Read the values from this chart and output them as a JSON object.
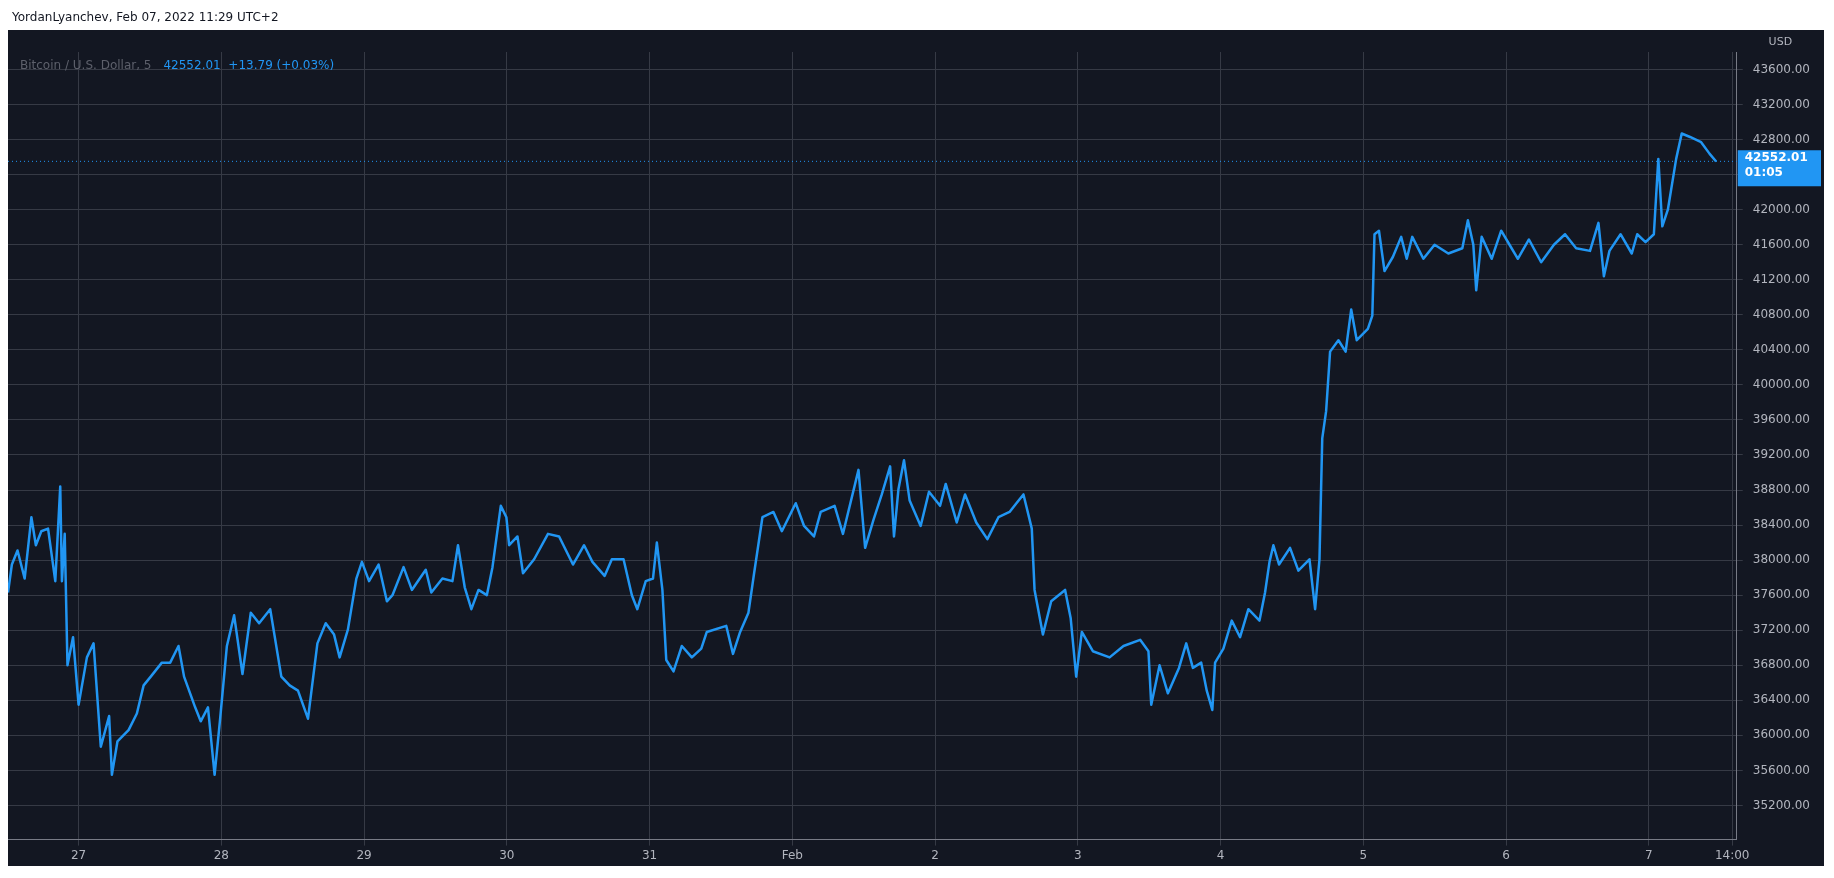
{
  "chart_data": {
    "type": "line",
    "title": "YordanLyanchev, Feb 07, 2022 11:29 UTC+2",
    "subtitle": "Bitcoin / U.S. Dollar, 5",
    "annotations": [
      "42552.01  +13.79 (+0.03%)"
    ],
    "ylabel": "USD",
    "color": "#2196f3",
    "marker": "none",
    "line_style": "solid",
    "grid": true,
    "x": [
      "2022-01-26T12:08",
      "2022-01-26T12:47",
      "2022-01-26T13:44",
      "2022-01-26T14:56",
      "2022-01-26T16:04",
      "2022-01-26T16:49",
      "2022-01-26T17:44",
      "2022-01-26T18:52",
      "2022-01-26T20:05",
      "2022-01-26T20:55",
      "2022-01-26T21:12",
      "2022-01-26T21:40",
      "2022-01-26T22:08",
      "2022-01-26T23:04",
      "2022-01-27T00:00",
      "2022-01-27T01:24",
      "2022-01-27T02:31",
      "2022-01-27T03:44",
      "2022-01-27T05:08",
      "2022-01-27T05:36",
      "2022-01-27T06:32",
      "2022-01-27T08:24",
      "2022-01-27T09:48",
      "2022-01-27T10:56",
      "2022-01-27T12:08",
      "2022-01-27T14:00",
      "2022-01-27T15:24",
      "2022-01-27T16:48",
      "2022-01-27T17:44",
      "2022-01-27T19:36",
      "2022-01-27T20:32",
      "2022-01-27T21:45",
      "2022-01-27T22:52",
      "2022-01-27T23:48",
      "2022-01-28T00:56",
      "2022-01-28T02:09",
      "2022-01-28T03:33",
      "2022-01-28T04:57",
      "2022-01-28T06:21",
      "2022-01-28T08:13",
      "2022-01-28T10:05",
      "2022-01-28T11:29",
      "2022-01-28T12:53",
      "2022-01-28T14:34",
      "2022-01-28T16:09",
      "2022-01-28T17:33",
      "2022-01-28T18:57",
      "2022-01-28T19:53",
      "2022-01-28T21:17",
      "2022-01-28T22:42",
      "2022-01-28T23:38",
      "2022-01-29T00:50",
      "2022-01-29T02:26",
      "2022-01-29T03:50",
      "2022-01-29T04:46",
      "2022-01-29T06:38",
      "2022-01-29T08:02",
      "2022-01-29T10:22",
      "2022-01-29T11:18",
      "2022-01-29T13:10",
      "2022-01-29T14:51",
      "2022-01-29T15:47",
      "2022-01-29T16:55",
      "2022-01-29T18:02",
      "2022-01-29T19:14",
      "2022-01-29T20:38",
      "2022-01-29T21:35",
      "2022-01-29T22:59",
      "2022-01-29T23:55",
      "2022-01-30T00:23",
      "2022-01-30T01:47",
      "2022-01-30T02:43",
      "2022-01-30T04:35",
      "2022-01-30T06:55",
      "2022-01-30T08:47",
      "2022-01-30T11:07",
      "2022-01-30T12:59",
      "2022-01-30T14:23",
      "2022-01-30T16:26",
      "2022-01-30T17:39",
      "2022-01-30T19:37",
      "2022-01-30T21:01",
      "2022-01-30T21:56",
      "2022-01-30T23:21",
      "2022-01-31T00:34",
      "2022-01-31T01:13",
      "2022-01-31T02:09",
      "2022-01-31T02:48",
      "2022-01-31T04:01",
      "2022-01-31T05:25",
      "2022-01-31T07:06",
      "2022-01-31T08:41",
      "2022-01-31T09:37",
      "2022-01-31T12:53",
      "2022-01-31T14:01",
      "2022-01-31T15:13",
      "2022-01-31T16:37",
      "2022-01-31T17:34",
      "2022-01-31T18:58",
      "2022-01-31T20:49",
      "2022-01-31T22:14",
      "2022-02-01T00:34",
      "2022-02-01T01:58",
      "2022-02-01T03:38",
      "2022-02-01T04:46",
      "2022-02-01T07:06",
      "2022-02-01T08:30",
      "2022-02-01T11:07",
      "2022-02-01T12:14",
      "2022-02-01T13:38",
      "2022-02-01T15:02",
      "2022-02-01T16:26",
      "2022-02-01T17:05",
      "2022-02-01T17:50",
      "2022-02-01T18:46",
      "2022-02-01T19:43",
      "2022-02-01T21:34",
      "2022-02-01T22:58",
      "2022-02-02T00:50",
      "2022-02-02T01:47",
      "2022-02-02T03:38",
      "2022-02-02T05:02",
      "2022-02-02T06:55",
      "2022-02-02T08:47",
      "2022-02-02T10:39",
      "2022-02-02T12:31",
      "2022-02-02T14:51",
      "2022-02-02T16:15",
      "2022-02-02T16:43",
      "2022-02-02T18:07",
      "2022-02-02T19:31",
      "2022-02-02T21:51",
      "2022-02-02T22:47",
      "2022-02-02T23:43",
      "2022-02-03T00:40",
      "2022-02-03T02:31",
      "2022-02-03T05:20",
      "2022-02-03T07:40",
      "2022-02-03T10:28",
      "2022-02-03T11:52",
      "2022-02-03T12:20",
      "2022-02-03T13:44",
      "2022-02-03T15:08",
      "2022-02-03T17:00",
      "2022-02-03T18:13",
      "2022-02-03T19:20",
      "2022-02-03T20:44",
      "2022-02-03T21:40",
      "2022-02-03T22:36",
      "2022-02-03T23:04",
      "2022-02-04T00:28",
      "2022-02-04T01:52",
      "2022-02-04T03:16",
      "2022-02-04T04:40",
      "2022-02-04T06:32",
      "2022-02-04T07:28",
      "2022-02-04T08:13",
      "2022-02-04T08:52",
      "2022-02-04T09:49",
      "2022-02-04T11:40",
      "2022-02-04T13:04",
      "2022-02-04T14:56",
      "2022-02-04T15:53",
      "2022-02-04T16:37",
      "2022-02-04T17:05",
      "2022-02-04T17:44",
      "2022-02-04T18:24",
      "2022-02-04T19:48",
      "2022-02-04T21:01",
      "2022-02-04T21:57",
      "2022-02-04T22:53",
      "2022-02-05T00:45",
      "2022-02-05T01:30",
      "2022-02-05T01:52",
      "2022-02-05T02:37",
      "2022-02-05T03:33",
      "2022-02-05T04:57",
      "2022-02-05T06:21",
      "2022-02-05T07:17",
      "2022-02-05T08:13",
      "2022-02-05T10:05",
      "2022-02-05T11:58",
      "2022-02-05T14:17",
      "2022-02-05T16:38",
      "2022-02-05T17:34",
      "2022-02-05T18:29",
      "2022-02-05T18:58",
      "2022-02-05T19:53",
      "2022-02-05T21:34",
      "2022-02-05T23:10",
      "2022-02-06T00:34",
      "2022-02-06T01:58",
      "2022-02-06T03:50",
      "2022-02-06T05:53",
      "2022-02-06T08:02",
      "2022-02-06T09:54",
      "2022-02-06T11:46",
      "2022-02-06T14:06",
      "2022-02-06T15:31",
      "2022-02-06T16:26",
      "2022-02-06T17:22",
      "2022-02-06T19:14",
      "2022-02-06T21:07",
      "2022-02-06T22:02",
      "2022-02-06T23:26",
      "2022-02-07T00:50",
      "2022-02-07T01:35",
      "2022-02-07T02:15",
      "2022-02-07T03:11",
      "2022-02-07T04:35",
      "2022-02-07T05:31",
      "2022-02-07T06:55",
      "2022-02-07T08:47",
      "2022-02-07T10:11",
      "2022-02-07T11:18"
    ],
    "values": [
      37630,
      37950,
      38110,
      37790,
      38490,
      38170,
      38330,
      38360,
      37760,
      38840,
      37760,
      38300,
      36800,
      37120,
      36350,
      36890,
      37050,
      35870,
      36220,
      35550,
      35930,
      36060,
      36250,
      36570,
      36670,
      36830,
      36830,
      37020,
      36670,
      36320,
      36160,
      36320,
      35550,
      36190,
      37020,
      37370,
      36700,
      37400,
      37280,
      37440,
      36670,
      36570,
      36510,
      36190,
      37050,
      37280,
      37150,
      36890,
      37210,
      37790,
      37980,
      37760,
      37950,
      37530,
      37600,
      37920,
      37660,
      37890,
      37630,
      37790,
      37760,
      38170,
      37690,
      37440,
      37660,
      37600,
      37920,
      38620,
      38490,
      38170,
      38270,
      37850,
      38010,
      38300,
      38270,
      37950,
      38170,
      37980,
      37820,
      38010,
      38010,
      37600,
      37440,
      37760,
      37790,
      38200,
      37660,
      36860,
      36730,
      37020,
      36890,
      36990,
      37180,
      37250,
      36930,
      37180,
      37400,
      37850,
      38490,
      38550,
      38330,
      38650,
      38390,
      38270,
      38550,
      38620,
      38300,
      39030,
      38140,
      38460,
      38750,
      39070,
      38270,
      38810,
      39140,
      38680,
      38390,
      38780,
      38620,
      38870,
      38430,
      38750,
      38430,
      38240,
      38490,
      38550,
      38750,
      38360,
      37660,
      37150,
      37530,
      37660,
      37340,
      36670,
      37180,
      36960,
      36890,
      37020,
      37090,
      36960,
      36350,
      36800,
      36480,
      36770,
      37050,
      36770,
      36830,
      36510,
      36290,
      36830,
      36990,
      37310,
      37120,
      37440,
      37310,
      37630,
      37980,
      38170,
      37950,
      38140,
      37880,
      38010,
      37440,
      38010,
      39390,
      39700,
      40380,
      40510,
      40380,
      40860,
      40510,
      40640,
      40790,
      41720,
      41760,
      41300,
      41460,
      41690,
      41440,
      41690,
      41440,
      41600,
      41500,
      41560,
      41880,
      41600,
      41080,
      41690,
      41440,
      41760,
      41600,
      41440,
      41660,
      41400,
      41600,
      41720,
      41560,
      41530,
      41850,
      41240,
      41530,
      41720,
      41500,
      41720,
      41630,
      41720,
      42580,
      41810,
      42000,
      42580,
      42870,
      42830,
      42770,
      42640,
      42550
    ],
    "xlim": [
      "2022-01-26T12:08",
      "2022-02-07T14:46"
    ],
    "xticks": [
      {
        "value": "2022-01-27",
        "label": "27"
      },
      {
        "value": "2022-01-28",
        "label": "28"
      },
      {
        "value": "2022-01-29",
        "label": "29"
      },
      {
        "value": "2022-01-30",
        "label": "30"
      },
      {
        "value": "2022-01-31",
        "label": "31"
      },
      {
        "value": "2022-02-01",
        "label": "Feb"
      },
      {
        "value": "2022-02-02",
        "label": "2"
      },
      {
        "value": "2022-02-03",
        "label": "3"
      },
      {
        "value": "2022-02-04",
        "label": "4"
      },
      {
        "value": "2022-02-05",
        "label": "5"
      },
      {
        "value": "2022-02-06",
        "label": "6"
      },
      {
        "value": "2022-02-07",
        "label": "7"
      },
      {
        "value": "2022-02-07T14:00",
        "label": "14:00"
      }
    ],
    "ylim": [
      34810,
      43800
    ],
    "yticks": [
      {
        "value": 35200,
        "label": "35200.00"
      },
      {
        "value": 35600,
        "label": "35600.00"
      },
      {
        "value": 36000,
        "label": "36000.00"
      },
      {
        "value": 36400,
        "label": "36400.00"
      },
      {
        "value": 36800,
        "label": "36800.00"
      },
      {
        "value": 37200,
        "label": "37200.00"
      },
      {
        "value": 37600,
        "label": "37600.00"
      },
      {
        "value": 38000,
        "label": "38000.00"
      },
      {
        "value": 38400,
        "label": "38400.00"
      },
      {
        "value": 38800,
        "label": "38800.00"
      },
      {
        "value": 39200,
        "label": "39200.00"
      },
      {
        "value": 39600,
        "label": "39600.00"
      },
      {
        "value": 40000,
        "label": "40000.00"
      },
      {
        "value": 40400,
        "label": "40400.00"
      },
      {
        "value": 40800,
        "label": "40800.00"
      },
      {
        "value": 41200,
        "label": "41200.00"
      },
      {
        "value": 41600,
        "label": "41600.00"
      },
      {
        "value": 42000,
        "label": "42000.00"
      },
      {
        "value": 42400,
        "label": null
      },
      {
        "value": 42800,
        "label": "42800.00"
      },
      {
        "value": 43200,
        "label": "43200.00"
      },
      {
        "value": 43600,
        "label": "43600.00"
      }
    ],
    "ref_lines": [
      {
        "axis": "y",
        "value": 42552.01,
        "label": "42552.01\n01:05",
        "color": "#2196f3",
        "line_style": "dotted"
      }
    ]
  }
}
